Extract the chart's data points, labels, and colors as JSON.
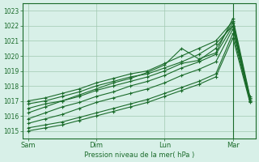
{
  "title": "",
  "xlabel": "Pression niveau de la mer( hPa )",
  "ylabel": "",
  "bg_color": "#d8f0e8",
  "grid_color": "#a0c8b0",
  "line_color": "#1a6b2a",
  "ylim": [
    1014.5,
    1023.5
  ],
  "yticks": [
    1015,
    1016,
    1017,
    1018,
    1019,
    1020,
    1021,
    1022,
    1023
  ],
  "xtick_labels": [
    "Sam",
    "Dim",
    "Lun",
    "Mar"
  ],
  "xtick_positions": [
    0,
    24,
    48,
    72
  ],
  "xlim": [
    -2,
    80
  ],
  "vline_x": 72,
  "lines": [
    {
      "x": [
        0,
        6,
        12,
        18,
        24,
        30,
        36,
        42,
        48,
        54,
        60,
        66,
        72,
        78
      ],
      "y": [
        1017.0,
        1017.2,
        1017.5,
        1017.8,
        1018.2,
        1018.5,
        1018.8,
        1019.0,
        1019.5,
        1020.0,
        1020.5,
        1021.0,
        1022.3,
        1017.2
      ]
    },
    {
      "x": [
        0,
        6,
        12,
        18,
        24,
        30,
        36,
        42,
        48,
        54,
        60,
        66,
        72,
        78
      ],
      "y": [
        1016.8,
        1017.0,
        1017.3,
        1017.6,
        1018.0,
        1018.3,
        1018.6,
        1018.8,
        1019.2,
        1019.6,
        1020.1,
        1020.8,
        1022.0,
        1017.0
      ]
    },
    {
      "x": [
        0,
        6,
        12,
        18,
        24,
        30,
        36,
        42,
        48,
        54,
        60,
        66,
        72,
        78
      ],
      "y": [
        1016.5,
        1016.8,
        1017.0,
        1017.4,
        1017.8,
        1018.2,
        1018.5,
        1018.9,
        1019.4,
        1020.5,
        1019.8,
        1020.2,
        1022.5,
        1017.3
      ]
    },
    {
      "x": [
        0,
        6,
        12,
        18,
        24,
        30,
        36,
        42,
        48,
        54,
        60,
        66,
        72,
        78
      ],
      "y": [
        1016.2,
        1016.6,
        1017.0,
        1017.3,
        1017.7,
        1018.0,
        1018.3,
        1018.6,
        1019.0,
        1019.5,
        1019.7,
        1020.5,
        1022.2,
        1017.1
      ]
    },
    {
      "x": [
        0,
        6,
        12,
        18,
        24,
        30,
        36,
        42,
        48,
        54,
        60,
        66,
        72,
        78
      ],
      "y": [
        1015.8,
        1016.2,
        1016.6,
        1016.9,
        1017.3,
        1017.6,
        1018.0,
        1018.3,
        1018.7,
        1019.2,
        1019.6,
        1020.1,
        1022.0,
        1017.2
      ]
    },
    {
      "x": [
        0,
        6,
        12,
        18,
        24,
        30,
        36,
        42,
        48,
        54,
        60,
        66,
        72,
        78
      ],
      "y": [
        1015.5,
        1015.8,
        1016.1,
        1016.5,
        1016.9,
        1017.2,
        1017.5,
        1017.8,
        1018.2,
        1018.7,
        1019.1,
        1019.6,
        1021.8,
        1017.0
      ]
    },
    {
      "x": [
        0,
        6,
        12,
        18,
        24,
        30,
        36,
        42,
        48,
        54,
        60,
        66,
        72,
        78
      ],
      "y": [
        1015.2,
        1015.4,
        1015.6,
        1015.9,
        1016.2,
        1016.5,
        1016.8,
        1017.1,
        1017.5,
        1017.9,
        1018.3,
        1018.8,
        1021.5,
        1017.0
      ]
    },
    {
      "x": [
        0,
        6,
        12,
        18,
        24,
        30,
        36,
        42,
        48,
        54,
        60,
        66,
        72,
        78
      ],
      "y": [
        1015.0,
        1015.2,
        1015.4,
        1015.7,
        1016.0,
        1016.3,
        1016.6,
        1016.9,
        1017.3,
        1017.7,
        1018.1,
        1018.6,
        1021.2,
        1016.9
      ]
    }
  ]
}
